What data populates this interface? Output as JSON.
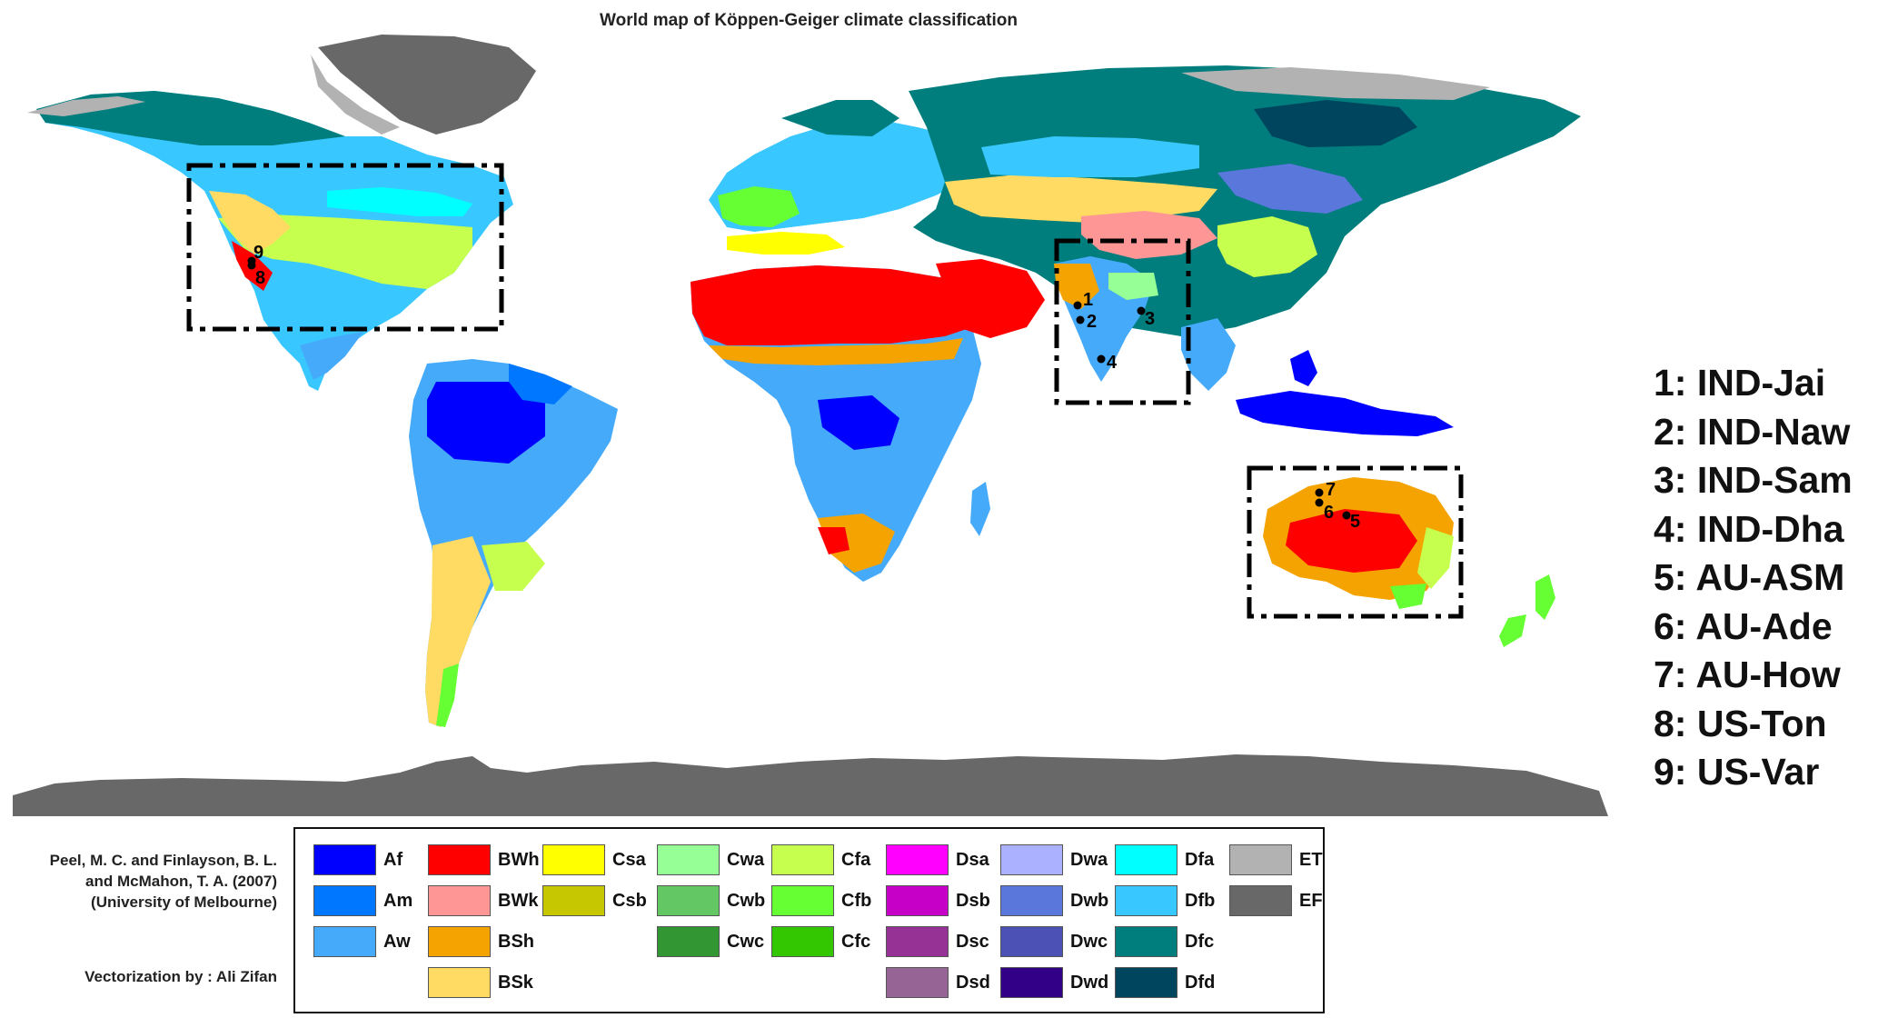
{
  "title": "World map of Köppen-Geiger climate classification",
  "credits": {
    "reference_lines": [
      "Peel, M. C. and Finlayson, B. L.",
      "and McMahon, T. A. (2007)",
      "(University of Melbourne)"
    ],
    "vectorization": "Vectorization by : Ali Zifan"
  },
  "sites": [
    {
      "number": "1",
      "code": "IND-Jai",
      "label": "1: IND-Jai"
    },
    {
      "number": "2",
      "code": "IND-Naw",
      "label": "2: IND-Naw"
    },
    {
      "number": "3",
      "code": "IND-Sam",
      "label": "3: IND-Sam"
    },
    {
      "number": "4",
      "code": "IND-Dha",
      "label": "4: IND-Dha"
    },
    {
      "number": "5",
      "code": "AU-ASM",
      "label": "5: AU-ASM"
    },
    {
      "number": "6",
      "code": "AU-Ade",
      "label": "6: AU-Ade"
    },
    {
      "number": "7",
      "code": "AU-How",
      "label": "7: AU-How"
    },
    {
      "number": "8",
      "code": "US-Ton",
      "label": "8: US-Ton"
    },
    {
      "number": "9",
      "code": "US-Var",
      "label": "9: US-Var"
    }
  ],
  "legend": {
    "columns": [
      [
        {
          "code": "Af",
          "color": "#0000fe"
        },
        {
          "code": "Am",
          "color": "#0077ff"
        },
        {
          "code": "Aw",
          "color": "#46aafa"
        }
      ],
      [
        {
          "code": "BWh",
          "color": "#fe0000"
        },
        {
          "code": "BWk",
          "color": "#fe9695"
        },
        {
          "code": "BSh",
          "color": "#f5a301"
        },
        {
          "code": "BSk",
          "color": "#ffdb63"
        }
      ],
      [
        {
          "code": "Csa",
          "color": "#ffff00"
        },
        {
          "code": "Csb",
          "color": "#c6c700"
        }
      ],
      [
        {
          "code": "Cwa",
          "color": "#96ff96"
        },
        {
          "code": "Cwb",
          "color": "#63c764"
        },
        {
          "code": "Cwc",
          "color": "#329633"
        }
      ],
      [
        {
          "code": "Cfa",
          "color": "#c6ff4e"
        },
        {
          "code": "Cfb",
          "color": "#66ff33"
        },
        {
          "code": "Cfc",
          "color": "#33c701"
        }
      ],
      [
        {
          "code": "Dsa",
          "color": "#ff00fe"
        },
        {
          "code": "Dsb",
          "color": "#c600c7"
        },
        {
          "code": "Dsc",
          "color": "#963295"
        },
        {
          "code": "Dsd",
          "color": "#966495"
        }
      ],
      [
        {
          "code": "Dwa",
          "color": "#abb1ff"
        },
        {
          "code": "Dwb",
          "color": "#5a77db"
        },
        {
          "code": "Dwc",
          "color": "#4c51b5"
        },
        {
          "code": "Dwd",
          "color": "#320087"
        }
      ],
      [
        {
          "code": "Dfa",
          "color": "#00ffff"
        },
        {
          "code": "Dfb",
          "color": "#38c7ff"
        },
        {
          "code": "Dfc",
          "color": "#007e7d"
        },
        {
          "code": "Dfd",
          "color": "#00455e"
        }
      ],
      [
        {
          "code": "ET",
          "color": "#b2b2b2"
        },
        {
          "code": "EF",
          "color": "#686868"
        }
      ]
    ]
  },
  "map_colors": {
    "ice_cap": "#686868",
    "tundra": "#b2b2b2",
    "subarctic": "#007e7d",
    "study_region_box": "#000000",
    "site_marker": "#000000"
  }
}
